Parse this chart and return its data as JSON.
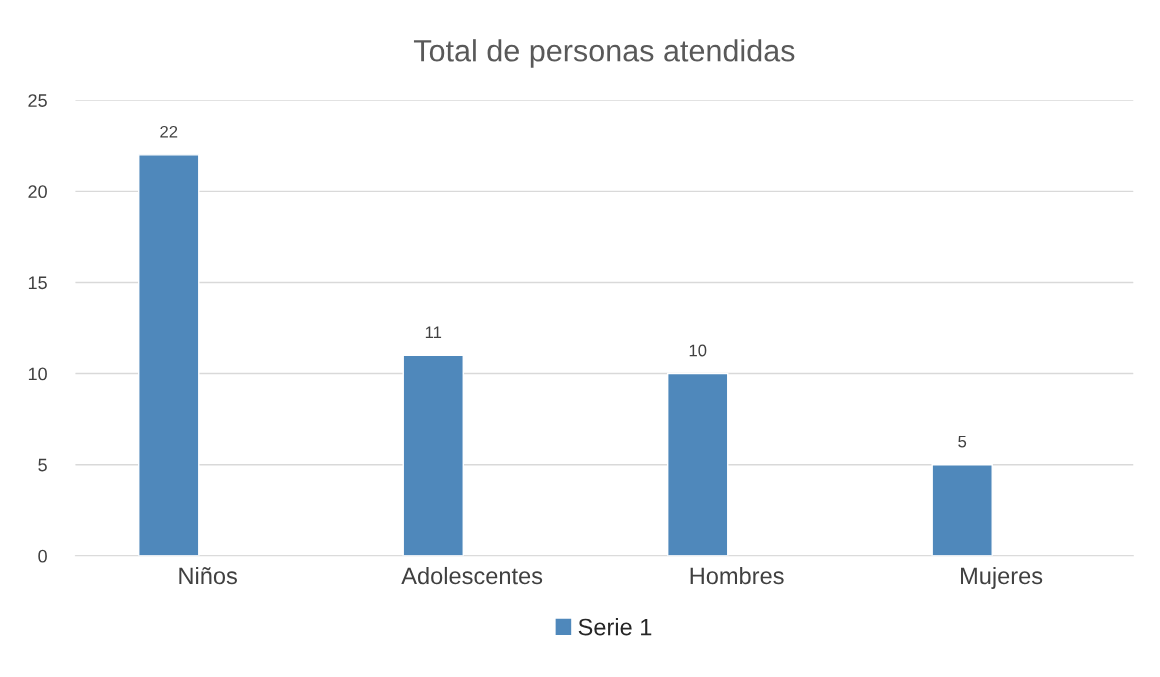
{
  "chart_data": {
    "type": "bar",
    "title": "Total de personas atendidas",
    "categories": [
      "Niños",
      "Adolescentes",
      "Hombres",
      "Mujeres"
    ],
    "series": [
      {
        "name": "Serie 1",
        "color": "#4f88bb",
        "values": [
          22,
          11,
          10,
          5
        ]
      }
    ],
    "ylim": [
      0,
      25
    ],
    "yticks": [
      0,
      5,
      10,
      15,
      20,
      25
    ],
    "grid": "y",
    "legend": "bottom",
    "data_labels": true
  }
}
